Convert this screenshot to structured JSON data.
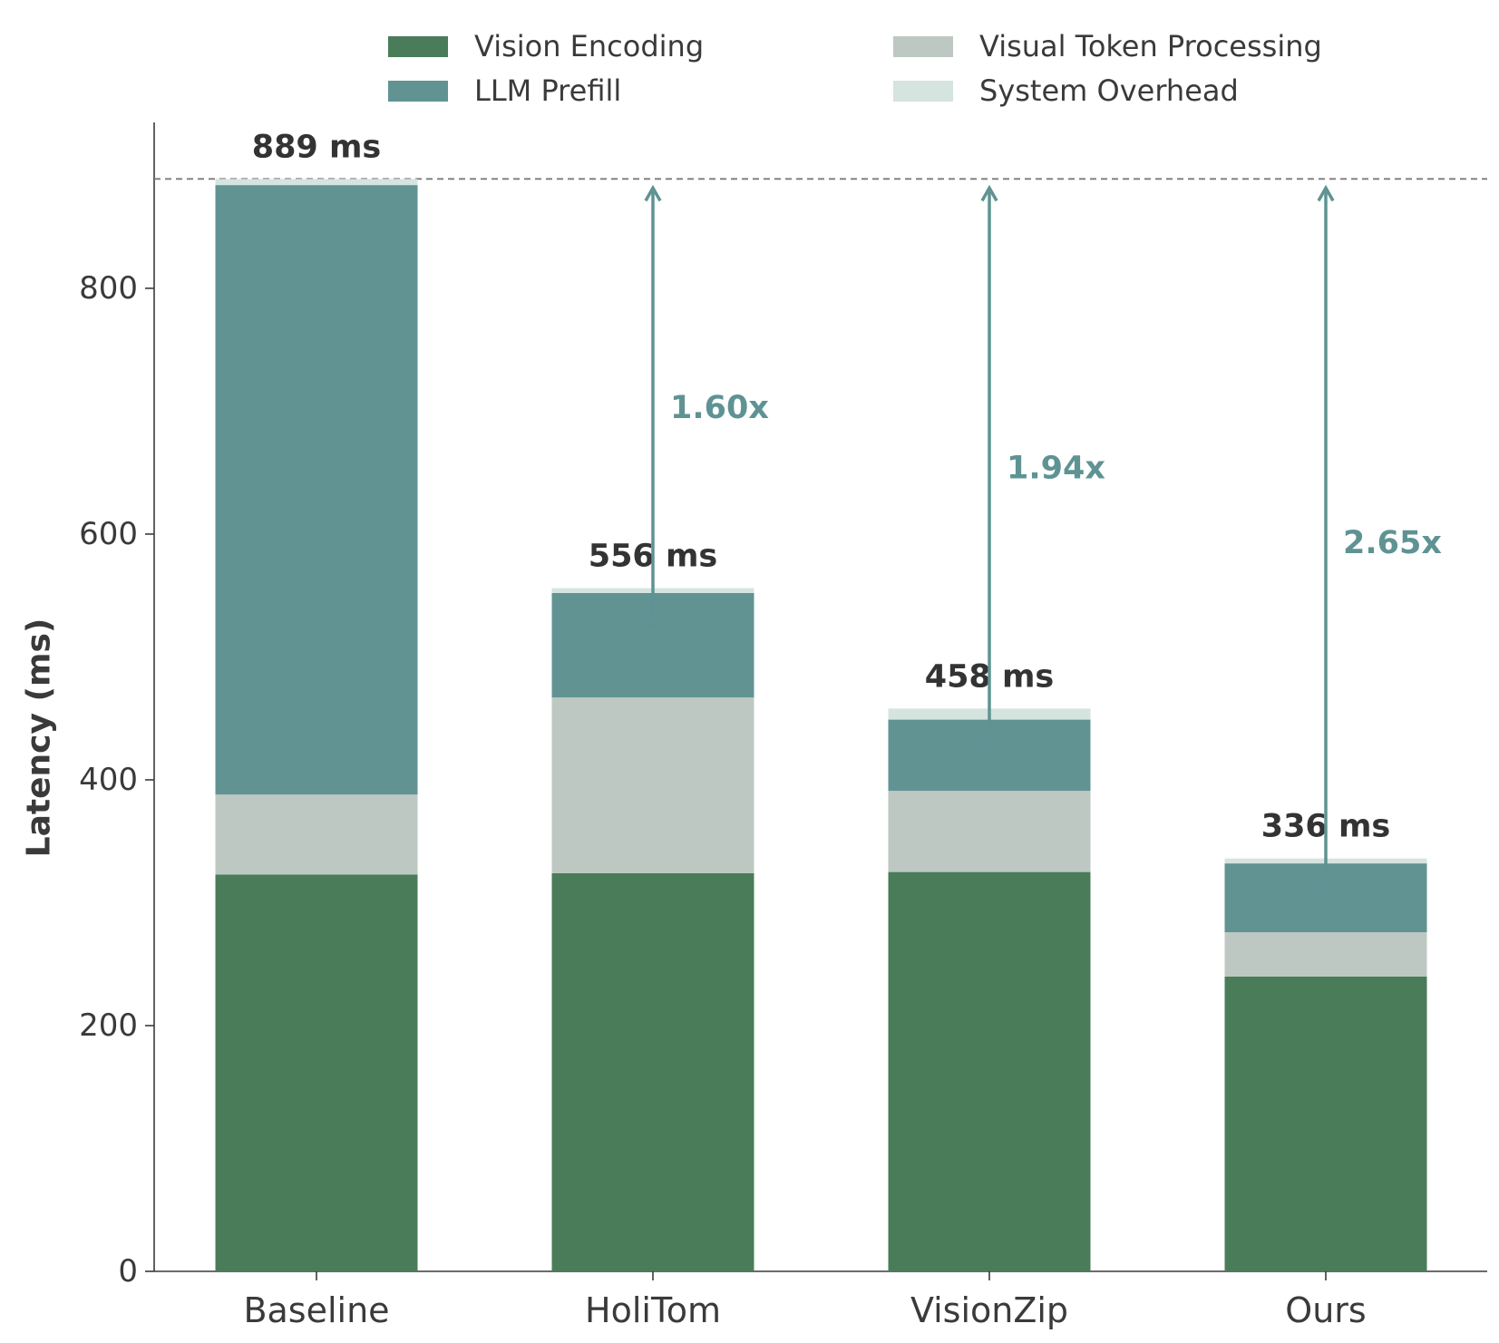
{
  "chart_data": {
    "type": "bar",
    "stacked": true,
    "categories": [
      "Baseline",
      "HoliTom",
      "VisionZip",
      "Ours"
    ],
    "series": [
      {
        "name": "Vision Encoding",
        "color": "#4a7c59",
        "values": [
          323,
          324,
          325,
          240
        ]
      },
      {
        "name": "Visual Token Processing",
        "color": "#bec8c2",
        "values": [
          65,
          143,
          66,
          36
        ]
      },
      {
        "name": "LLM Prefill",
        "color": "#619393",
        "values": [
          496,
          85,
          58,
          56
        ]
      },
      {
        "name": "System Overhead",
        "color": "#d5e4de",
        "values": [
          5,
          4,
          9,
          4
        ]
      }
    ],
    "totals": [
      889,
      556,
      458,
      336
    ],
    "total_labels": [
      "889 ms",
      "556 ms",
      "458 ms",
      "336 ms"
    ],
    "speedups": [
      {
        "category": "HoliTom",
        "label": "1.60x"
      },
      {
        "category": "VisionZip",
        "label": "1.94x"
      },
      {
        "category": "Ours",
        "label": "2.65x"
      }
    ],
    "baseline_reference": 889,
    "ylabel": "Latency (ms)",
    "xlabel": "",
    "ylim": [
      0,
      935
    ],
    "yticks": [
      0,
      200,
      400,
      600,
      800
    ],
    "legend_position": "top-center",
    "legend_columns": 2,
    "grid": false,
    "annotation_color": "#5f9393"
  }
}
